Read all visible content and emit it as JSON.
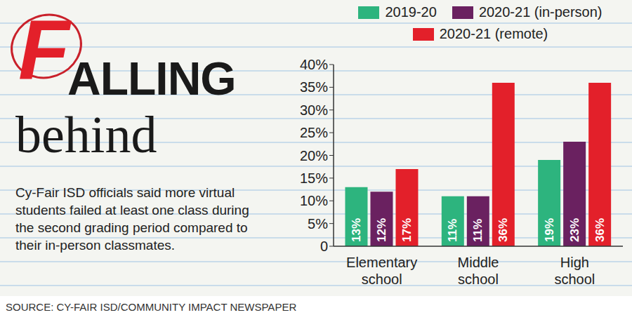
{
  "chart_data": {
    "type": "bar",
    "title": "FALLING behind",
    "subtitle": "Cy-Fair ISD officials said more virtual students failed at least one class during the second grading period compared to their in-person classmates.",
    "source": "SOURCE: CY-FAIR ISD/COMMUNITY IMPACT NEWSPAPER",
    "categories": [
      "Elementary school",
      "Middle school",
      "High school"
    ],
    "series": [
      {
        "name": "2019-20",
        "color": "#2db47e",
        "values": [
          13,
          11,
          19
        ],
        "value_labels": [
          "13%",
          "11%",
          "19%"
        ]
      },
      {
        "name": "2020-21 (in-person)",
        "color": "#6a2160",
        "values": [
          12,
          11,
          23
        ],
        "value_labels": [
          "12%",
          "11%",
          "23%"
        ]
      },
      {
        "name": "2020-21 (remote)",
        "color": "#e3202a",
        "values": [
          17,
          36,
          36
        ],
        "value_labels": [
          "17%",
          "36%",
          "36%"
        ]
      }
    ],
    "ylim": [
      0,
      40
    ],
    "yticks": [
      0,
      {
        "value": 5,
        "label": "5%"
      },
      {
        "value": 10,
        "label": "10%"
      },
      {
        "value": 15,
        "label": "15%"
      },
      {
        "value": 20,
        "label": "20%"
      },
      {
        "value": 25,
        "label": "25%"
      },
      {
        "value": 30,
        "label": "30%"
      },
      {
        "value": 35,
        "label": "35%"
      },
      {
        "value": 40,
        "label": "40%"
      }
    ],
    "grid": false,
    "legend": "top",
    "data_labels": true
  }
}
